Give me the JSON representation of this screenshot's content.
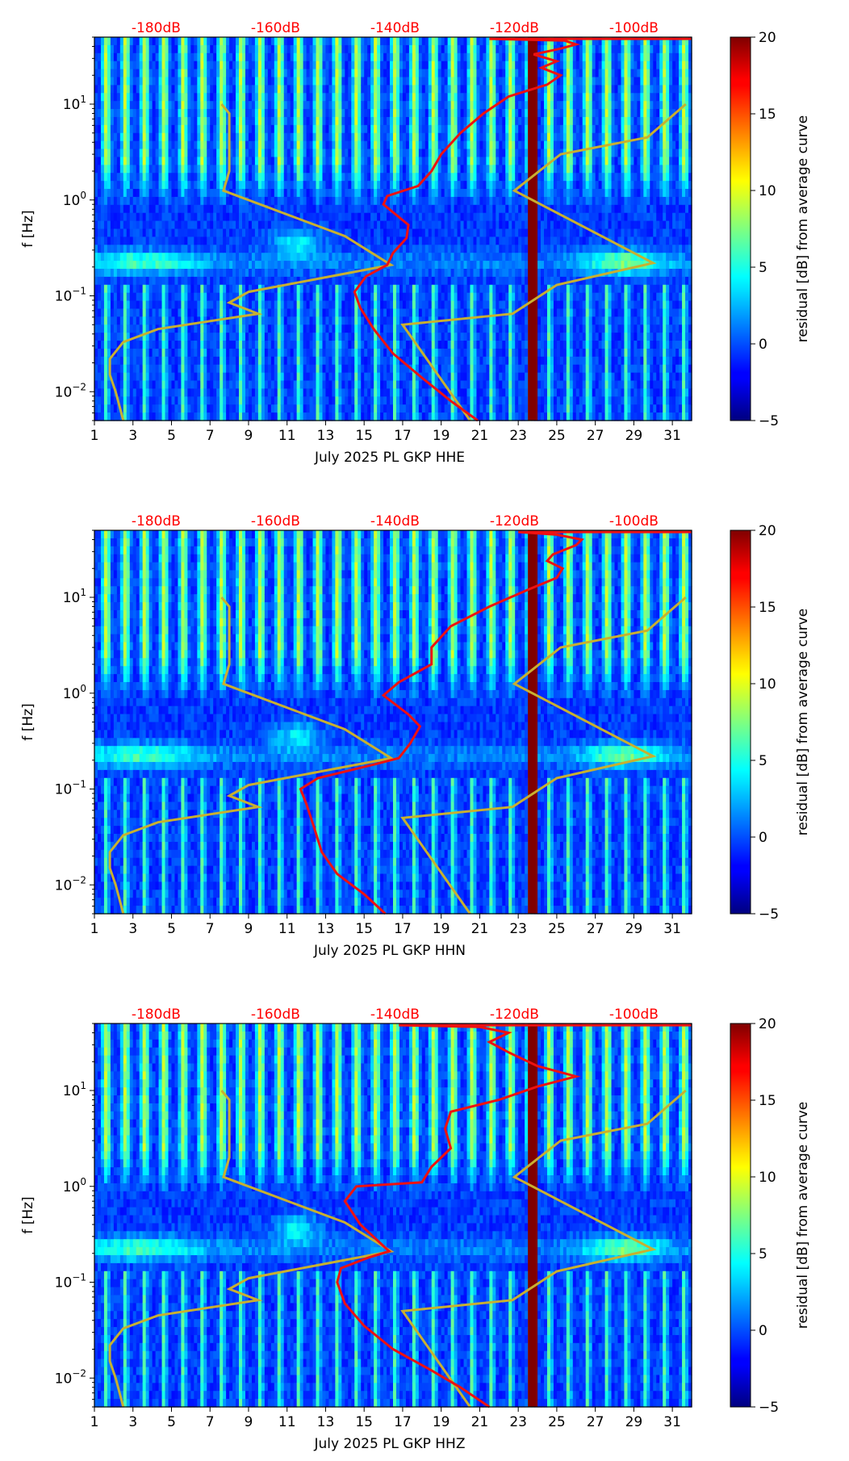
{
  "colorbar": {
    "label": "residual [dB] from average curve",
    "ticks": [
      -5,
      0,
      5,
      10,
      15,
      20
    ],
    "range": [
      -5,
      20
    ]
  },
  "chart_data": [
    {
      "type": "heatmap",
      "channel": "HHE",
      "xlabel": "July 2025 PL GKP  HHE",
      "ylabel": "f [Hz]",
      "xlim": [
        1,
        32
      ],
      "x_ticks": [
        1,
        3,
        5,
        7,
        9,
        11,
        13,
        15,
        17,
        19,
        21,
        23,
        25,
        27,
        29,
        31
      ],
      "y_scale": "log",
      "ylim": [
        0.005,
        50
      ],
      "y_ticks": [
        {
          "value": 0.01,
          "base": "10",
          "exp": "−2"
        },
        {
          "value": 0.1,
          "base": "10",
          "exp": "−1"
        },
        {
          "value": 1,
          "base": "10",
          "exp": "0"
        },
        {
          "value": 10,
          "base": "10",
          "exp": "1"
        }
      ],
      "db_scale": {
        "labels": [
          "-180dB",
          "-160dB",
          "-140dB",
          "-120dB",
          "-100dB"
        ],
        "positions_day": [
          4.2,
          10.4,
          16.6,
          22.8,
          29.0
        ]
      },
      "data_gap": {
        "day_start": 23.5,
        "day_end": 24.0
      },
      "average_curve": [
        [
          20.9,
          0.005
        ],
        [
          19.5,
          0.008
        ],
        [
          18.0,
          0.014
        ],
        [
          16.5,
          0.025
        ],
        [
          15.5,
          0.045
        ],
        [
          14.8,
          0.075
        ],
        [
          14.5,
          0.11
        ],
        [
          15.1,
          0.16
        ],
        [
          16.2,
          0.21
        ],
        [
          16.5,
          0.28
        ],
        [
          17.2,
          0.4
        ],
        [
          17.3,
          0.55
        ],
        [
          16.0,
          0.9
        ],
        [
          16.2,
          1.1
        ],
        [
          17.8,
          1.4
        ],
        [
          18.5,
          2.0
        ],
        [
          19.0,
          3.0
        ],
        [
          20.0,
          5.0
        ],
        [
          21.2,
          8.0
        ],
        [
          22.5,
          12.0
        ],
        [
          24.5,
          16.0
        ],
        [
          25.2,
          20.0
        ],
        [
          24.2,
          24.0
        ],
        [
          25.0,
          28.0
        ],
        [
          23.8,
          33.0
        ],
        [
          25.2,
          38.0
        ],
        [
          26.0,
          42.0
        ],
        [
          25.4,
          46.0
        ],
        [
          21.5,
          48.0
        ],
        [
          32.0,
          48.0
        ]
      ],
      "nlnm": [
        [
          2.5,
          0.005
        ],
        [
          2.1,
          0.01
        ],
        [
          1.8,
          0.015
        ],
        [
          1.8,
          0.022
        ],
        [
          2.5,
          0.033
        ],
        [
          4.3,
          0.045
        ],
        [
          9.5,
          0.065
        ],
        [
          8.0,
          0.085
        ],
        [
          9.0,
          0.11
        ],
        [
          16.4,
          0.21
        ],
        [
          14.0,
          0.42
        ],
        [
          7.7,
          1.25
        ],
        [
          8.0,
          2.0
        ],
        [
          8.0,
          4.0
        ],
        [
          8.0,
          8.0
        ],
        [
          7.6,
          10.0
        ]
      ],
      "nhnm": [
        [
          20.5,
          0.005
        ],
        [
          17.0,
          0.05
        ],
        [
          22.7,
          0.065
        ],
        [
          25.0,
          0.13
        ],
        [
          30.0,
          0.22
        ],
        [
          22.8,
          1.25
        ],
        [
          25.2,
          3.0
        ],
        [
          29.7,
          4.5
        ],
        [
          31.7,
          10.0
        ]
      ]
    },
    {
      "type": "heatmap",
      "channel": "HHN",
      "xlabel": "July 2025 PL GKP  HHN",
      "ylabel": "f [Hz]",
      "xlim": [
        1,
        32
      ],
      "x_ticks": [
        1,
        3,
        5,
        7,
        9,
        11,
        13,
        15,
        17,
        19,
        21,
        23,
        25,
        27,
        29,
        31
      ],
      "y_scale": "log",
      "ylim": [
        0.005,
        50
      ],
      "y_ticks": [
        {
          "value": 0.01,
          "base": "10",
          "exp": "−2"
        },
        {
          "value": 0.1,
          "base": "10",
          "exp": "−1"
        },
        {
          "value": 1,
          "base": "10",
          "exp": "0"
        },
        {
          "value": 10,
          "base": "10",
          "exp": "1"
        }
      ],
      "db_scale": {
        "labels": [
          "-180dB",
          "-160dB",
          "-140dB",
          "-120dB",
          "-100dB"
        ],
        "positions_day": [
          4.2,
          10.4,
          16.6,
          22.8,
          29.0
        ]
      },
      "data_gap": {
        "day_start": 23.5,
        "day_end": 24.0
      },
      "average_curve": [
        [
          16.1,
          0.005
        ],
        [
          15.0,
          0.008
        ],
        [
          13.6,
          0.013
        ],
        [
          12.8,
          0.022
        ],
        [
          12.4,
          0.04
        ],
        [
          12.0,
          0.07
        ],
        [
          11.7,
          0.1
        ],
        [
          12.6,
          0.13
        ],
        [
          15.5,
          0.18
        ],
        [
          16.8,
          0.21
        ],
        [
          17.4,
          0.3
        ],
        [
          17.9,
          0.45
        ],
        [
          17.3,
          0.6
        ],
        [
          16.0,
          0.95
        ],
        [
          16.8,
          1.3
        ],
        [
          18.5,
          2.0
        ],
        [
          18.5,
          3.0
        ],
        [
          19.5,
          5.0
        ],
        [
          21.5,
          8.0
        ],
        [
          23.5,
          12.0
        ],
        [
          25.0,
          16.0
        ],
        [
          25.3,
          20.0
        ],
        [
          24.5,
          24.0
        ],
        [
          24.8,
          28.0
        ],
        [
          26.0,
          35.0
        ],
        [
          26.3,
          40.0
        ],
        [
          25.0,
          45.0
        ],
        [
          23.0,
          48.0
        ],
        [
          32.0,
          48.0
        ]
      ],
      "nlnm": [
        [
          2.5,
          0.005
        ],
        [
          2.1,
          0.01
        ],
        [
          1.8,
          0.015
        ],
        [
          1.8,
          0.022
        ],
        [
          2.5,
          0.033
        ],
        [
          4.3,
          0.045
        ],
        [
          9.5,
          0.065
        ],
        [
          8.0,
          0.085
        ],
        [
          9.0,
          0.11
        ],
        [
          16.4,
          0.21
        ],
        [
          14.0,
          0.42
        ],
        [
          7.7,
          1.25
        ],
        [
          8.0,
          2.0
        ],
        [
          8.0,
          4.0
        ],
        [
          8.0,
          8.0
        ],
        [
          7.6,
          10.0
        ]
      ],
      "nhnm": [
        [
          20.5,
          0.005
        ],
        [
          17.0,
          0.05
        ],
        [
          22.7,
          0.065
        ],
        [
          25.0,
          0.13
        ],
        [
          30.0,
          0.22
        ],
        [
          22.8,
          1.25
        ],
        [
          25.2,
          3.0
        ],
        [
          29.7,
          4.5
        ],
        [
          31.7,
          10.0
        ]
      ]
    },
    {
      "type": "heatmap",
      "channel": "HHZ",
      "xlabel": "July 2025 PL GKP  HHZ",
      "ylabel": "f [Hz]",
      "xlim": [
        1,
        32
      ],
      "x_ticks": [
        1,
        3,
        5,
        7,
        9,
        11,
        13,
        15,
        17,
        19,
        21,
        23,
        25,
        27,
        29,
        31
      ],
      "y_scale": "log",
      "ylim": [
        0.005,
        50
      ],
      "y_ticks": [
        {
          "value": 0.01,
          "base": "10",
          "exp": "−2"
        },
        {
          "value": 0.1,
          "base": "10",
          "exp": "−1"
        },
        {
          "value": 1,
          "base": "10",
          "exp": "0"
        },
        {
          "value": 10,
          "base": "10",
          "exp": "1"
        }
      ],
      "db_scale": {
        "labels": [
          "-180dB",
          "-160dB",
          "-140dB",
          "-120dB",
          "-100dB"
        ],
        "positions_day": [
          4.2,
          10.4,
          16.6,
          22.8,
          29.0
        ]
      },
      "data_gap": {
        "day_start": 23.5,
        "day_end": 24.0
      },
      "average_curve": [
        [
          21.5,
          0.005
        ],
        [
          20.0,
          0.008
        ],
        [
          18.5,
          0.012
        ],
        [
          16.5,
          0.02
        ],
        [
          15.0,
          0.035
        ],
        [
          14.0,
          0.06
        ],
        [
          13.6,
          0.1
        ],
        [
          13.8,
          0.14
        ],
        [
          15.2,
          0.18
        ],
        [
          16.3,
          0.21
        ],
        [
          14.8,
          0.4
        ],
        [
          14.0,
          0.7
        ],
        [
          14.6,
          1.0
        ],
        [
          18.0,
          1.1
        ],
        [
          18.5,
          1.6
        ],
        [
          19.5,
          2.5
        ],
        [
          19.2,
          4.0
        ],
        [
          19.5,
          6.0
        ],
        [
          22.0,
          8.0
        ],
        [
          24.0,
          11.0
        ],
        [
          26.0,
          14.0
        ],
        [
          24.0,
          18.0
        ],
        [
          22.5,
          25.0
        ],
        [
          21.5,
          32.0
        ],
        [
          22.5,
          40.0
        ],
        [
          21.0,
          46.0
        ],
        [
          16.8,
          48.0
        ],
        [
          32.0,
          48.0
        ]
      ],
      "nlnm": [
        [
          2.5,
          0.005
        ],
        [
          2.1,
          0.01
        ],
        [
          1.8,
          0.015
        ],
        [
          1.8,
          0.022
        ],
        [
          2.5,
          0.033
        ],
        [
          4.3,
          0.045
        ],
        [
          9.5,
          0.065
        ],
        [
          8.0,
          0.085
        ],
        [
          9.0,
          0.11
        ],
        [
          16.4,
          0.21
        ],
        [
          14.0,
          0.42
        ],
        [
          7.7,
          1.25
        ],
        [
          8.0,
          2.0
        ],
        [
          8.0,
          4.0
        ],
        [
          8.0,
          8.0
        ],
        [
          7.6,
          10.0
        ]
      ],
      "nhnm": [
        [
          20.5,
          0.005
        ],
        [
          17.0,
          0.05
        ],
        [
          22.7,
          0.065
        ],
        [
          25.0,
          0.13
        ],
        [
          30.0,
          0.22
        ],
        [
          22.8,
          1.25
        ],
        [
          25.2,
          3.0
        ],
        [
          29.7,
          4.5
        ],
        [
          31.7,
          10.0
        ]
      ]
    }
  ]
}
